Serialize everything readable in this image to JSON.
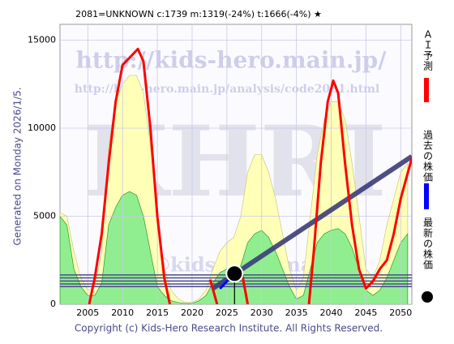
{
  "chart_data": {
    "type": "line",
    "title": "2081=UNKNOWN    c:1739  m:1319(-24%)  t:1666(-4%)  ★",
    "footer": "Copyright (c) Kids-Hero Research Institute. All Rights Reserved.",
    "side_label": "Generated on Monday 2026/1/5.",
    "watermarks": [
      "http://kids-hero.main.jp/",
      "http://kids-hero.main.jp/analysis/code2081.html",
      "KHRI",
      "info@kids-hero.main.jp"
    ],
    "xlim": [
      2001,
      2051.6
    ],
    "xticks": [
      2005,
      2010,
      2015,
      2020,
      2025,
      2030,
      2035,
      2040,
      2045,
      2050
    ],
    "ylim": [
      0,
      15900
    ],
    "yticks": [
      0,
      5000,
      10000,
      15000
    ],
    "grid": true,
    "areas": [
      {
        "color": "#ffffb8",
        "x": [
          2001,
          2002,
          2003,
          2004,
          2005,
          2006,
          2007,
          2008,
          2009,
          2010,
          2011,
          2012,
          2013,
          2014,
          2015,
          2016,
          2017,
          2018,
          2019,
          2020,
          2021,
          2022,
          2023,
          2024,
          2025,
          2026,
          2027,
          2028,
          2029,
          2030,
          2031,
          2032,
          2033,
          2034,
          2035,
          2036,
          2037,
          2038,
          2039,
          2040,
          2041,
          2042,
          2043,
          2044,
          2045,
          2046,
          2047,
          2048,
          2049,
          2050,
          2051
        ],
        "values": [
          5200,
          5000,
          3000,
          1500,
          800,
          1000,
          3000,
          9000,
          11500,
          12500,
          13000,
          13000,
          12000,
          9000,
          5000,
          2000,
          800,
          300,
          100,
          100,
          300,
          800,
          2000,
          3000,
          3500,
          3800,
          5000,
          7500,
          8500,
          8500,
          7500,
          6000,
          4000,
          2000,
          800,
          1500,
          5000,
          8500,
          10500,
          11500,
          11500,
          10500,
          8000,
          5000,
          2000,
          1500,
          2500,
          4500,
          6000,
          7500,
          8000
        ]
      },
      {
        "color": "#90ee90",
        "x": [
          2001,
          2002,
          2003,
          2004,
          2005,
          2006,
          2007,
          2008,
          2009,
          2010,
          2011,
          2012,
          2013,
          2014,
          2015,
          2016,
          2017,
          2018,
          2019,
          2020,
          2021,
          2022,
          2023,
          2024,
          2025,
          2026,
          2027,
          2028,
          2029,
          2030,
          2031,
          2032,
          2033,
          2034,
          2035,
          2036,
          2037,
          2038,
          2039,
          2040,
          2041,
          2042,
          2043,
          2044,
          2045,
          2046,
          2047,
          2048,
          2049,
          2050,
          2051
        ],
        "values": [
          5000,
          4500,
          2000,
          1000,
          500,
          500,
          1200,
          4500,
          5500,
          6200,
          6400,
          6200,
          5000,
          3000,
          1000,
          500,
          200,
          100,
          50,
          50,
          200,
          500,
          1200,
          1800,
          2000,
          1800,
          2200,
          3500,
          4000,
          4200,
          3800,
          3000,
          2000,
          1000,
          300,
          500,
          2000,
          3500,
          4000,
          4200,
          4300,
          4000,
          3200,
          2000,
          800,
          500,
          800,
          1500,
          2500,
          3500,
          4000
        ]
      }
    ],
    "levels": {
      "color": "#4a4a8a",
      "values": [
        1000,
        1150,
        1319,
        1500,
        1666
      ]
    },
    "trend": {
      "color": "#3c3c78",
      "x": [
        2023,
        2051.6
      ],
      "values": [
        900,
        8400
      ]
    },
    "series": [
      {
        "name": "ＡＩ予測",
        "color": "#ff0000",
        "x": [
          2005.2,
          2006,
          2007,
          2008,
          2009,
          2010,
          2011,
          2012.2,
          2013,
          2014,
          2015,
          2016,
          2016.8,
          2020,
          2022.6,
          2023.6,
          2025,
          2027.2,
          2028,
          2031,
          2036.8,
          2037.5,
          2038.5,
          2039.5,
          2040.3,
          2041,
          2042,
          2043,
          2044,
          2045,
          2046,
          2047,
          2048,
          2049,
          2050,
          2051.6
        ],
        "values": [
          0,
          1500,
          4000,
          8000,
          11500,
          13600,
          14000,
          14500,
          13800,
          10000,
          5000,
          1500,
          0,
          null,
          1400,
          0,
          null,
          1700,
          0,
          null,
          0,
          3000,
          8000,
          11500,
          12700,
          12000,
          8000,
          4500,
          2000,
          900,
          1300,
          2000,
          2500,
          4000,
          6000,
          8300
        ]
      },
      {
        "name": "過去の株価",
        "color": "#0000ff",
        "x": [
          2024,
          2025,
          2026.1
        ],
        "values": [
          880,
          1300,
          1739
        ]
      },
      {
        "name": "最新の株価",
        "color": "#000000",
        "x": [
          2026.1
        ],
        "values": [
          1739
        ]
      }
    ]
  }
}
